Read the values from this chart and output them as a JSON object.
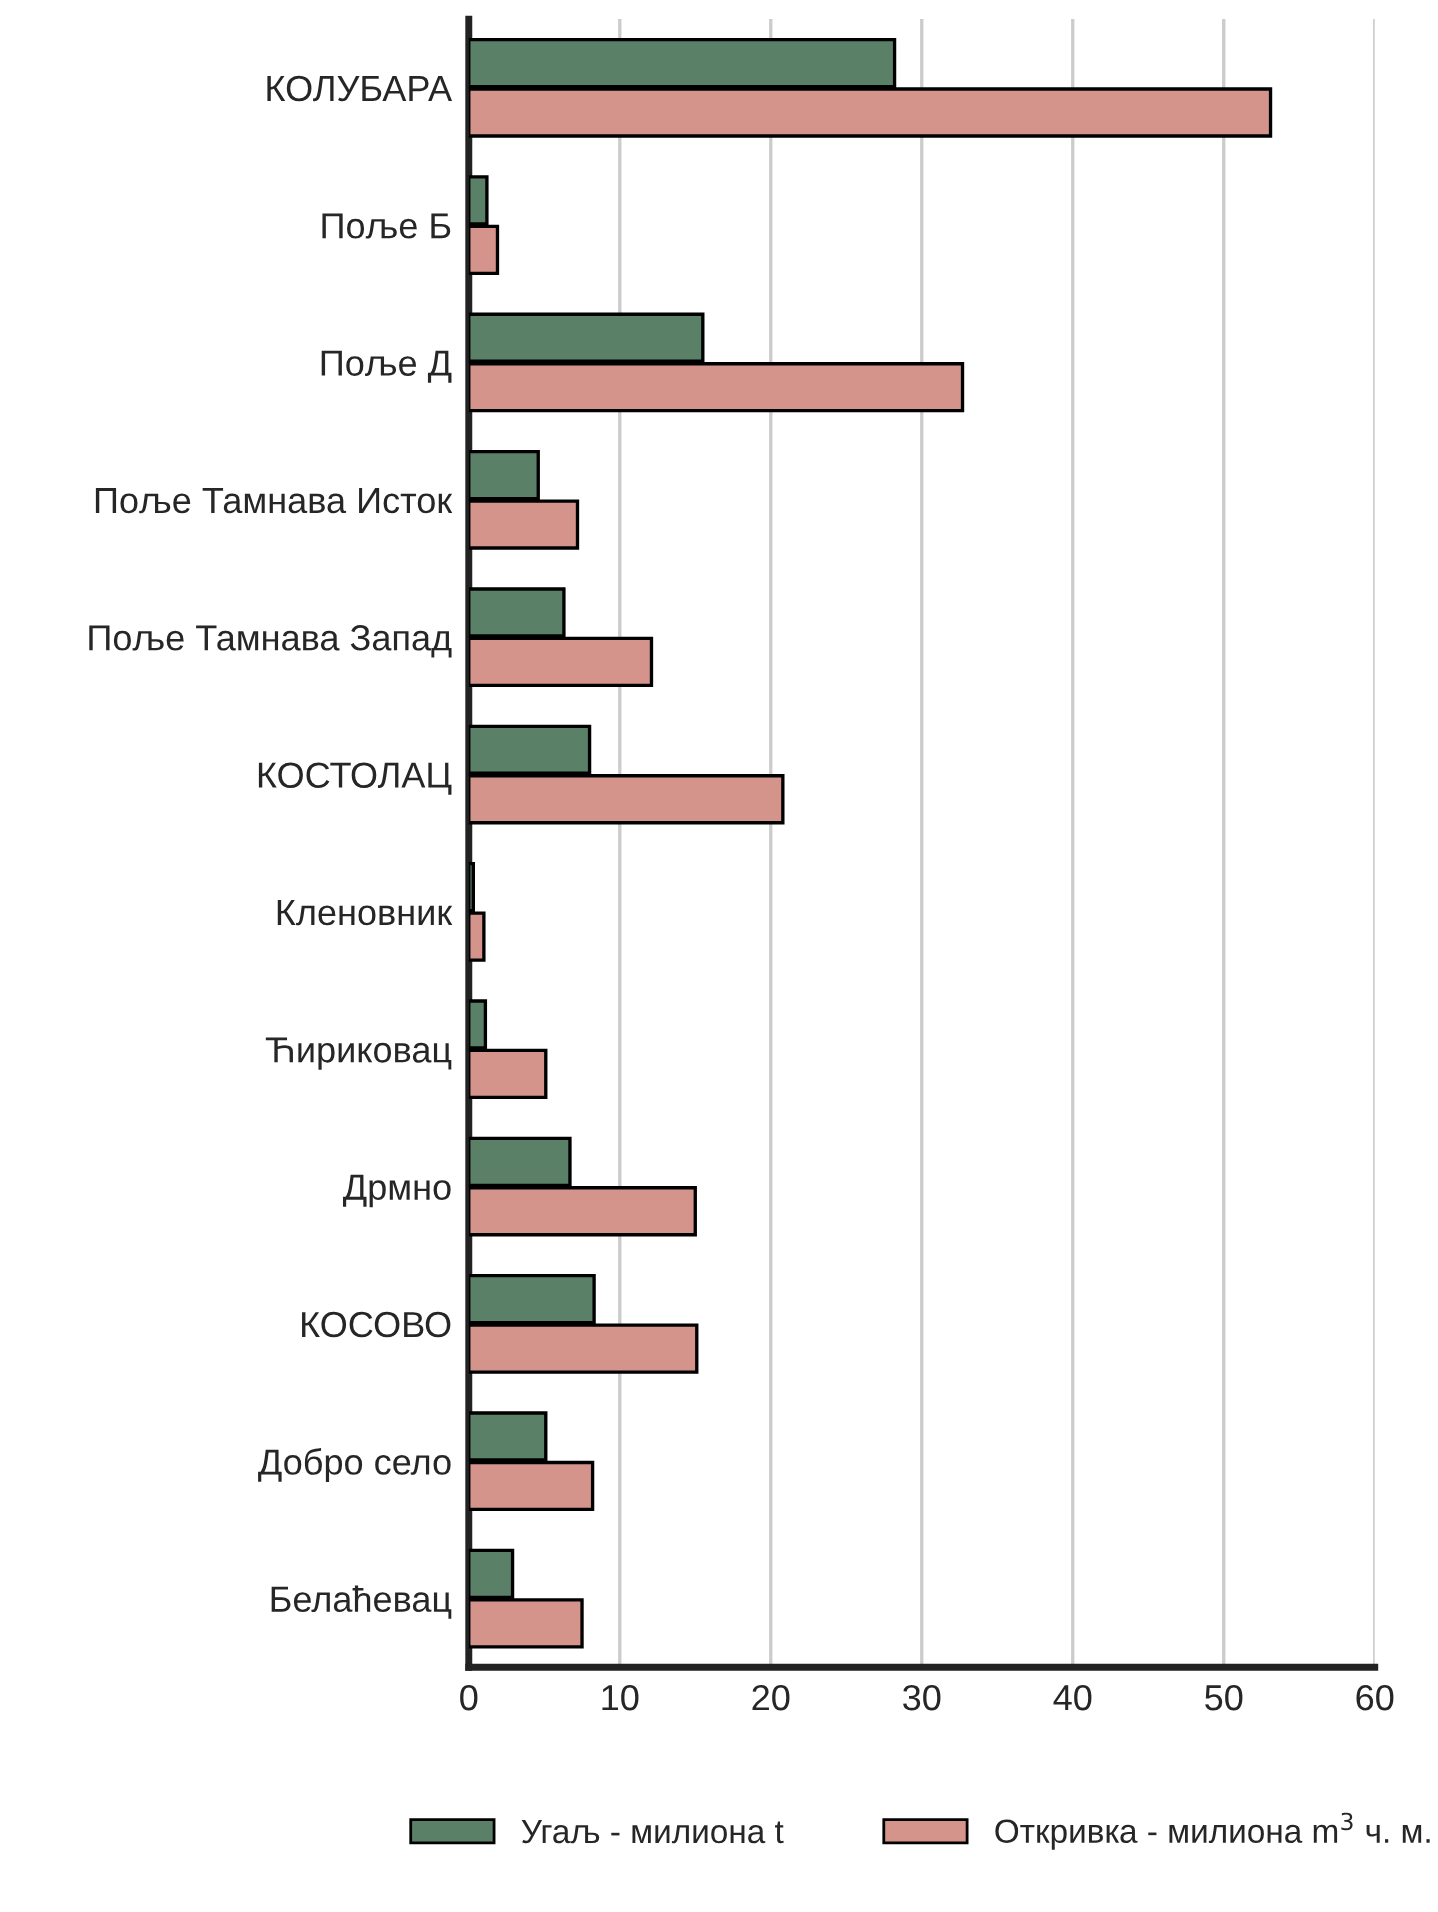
{
  "chart_data": {
    "type": "bar",
    "orientation": "horizontal",
    "categories": [
      "КОЛУБАРА",
      "Поље Б",
      "Поље Д",
      "Поље Тамнава Исток",
      "Поље Тамнава Запад",
      "КОСТОЛАЦ",
      "Кленовник",
      "Ћириковац",
      "Дрмно",
      "КОСОВО",
      "Добро село",
      "Белаћевац"
    ],
    "series": [
      {
        "name": "Угаљ - милиона t",
        "color": "#5b8068",
        "values": [
          28.2,
          1.2,
          15.5,
          4.6,
          6.3,
          8.0,
          0.3,
          1.1,
          6.7,
          8.3,
          5.1,
          2.9
        ]
      },
      {
        "name": "Откривка - милиона m$^{3}$ ч. м.",
        "color": "#d4948c",
        "values": [
          53.1,
          1.9,
          32.7,
          7.2,
          12.1,
          20.8,
          1.0,
          5.1,
          15.0,
          15.1,
          8.2,
          7.5
        ]
      }
    ],
    "xlim": [
      0,
      60
    ],
    "xticks": [
      0,
      10,
      20,
      30,
      40,
      50,
      60
    ],
    "grid": "x",
    "legend": "bottom"
  }
}
